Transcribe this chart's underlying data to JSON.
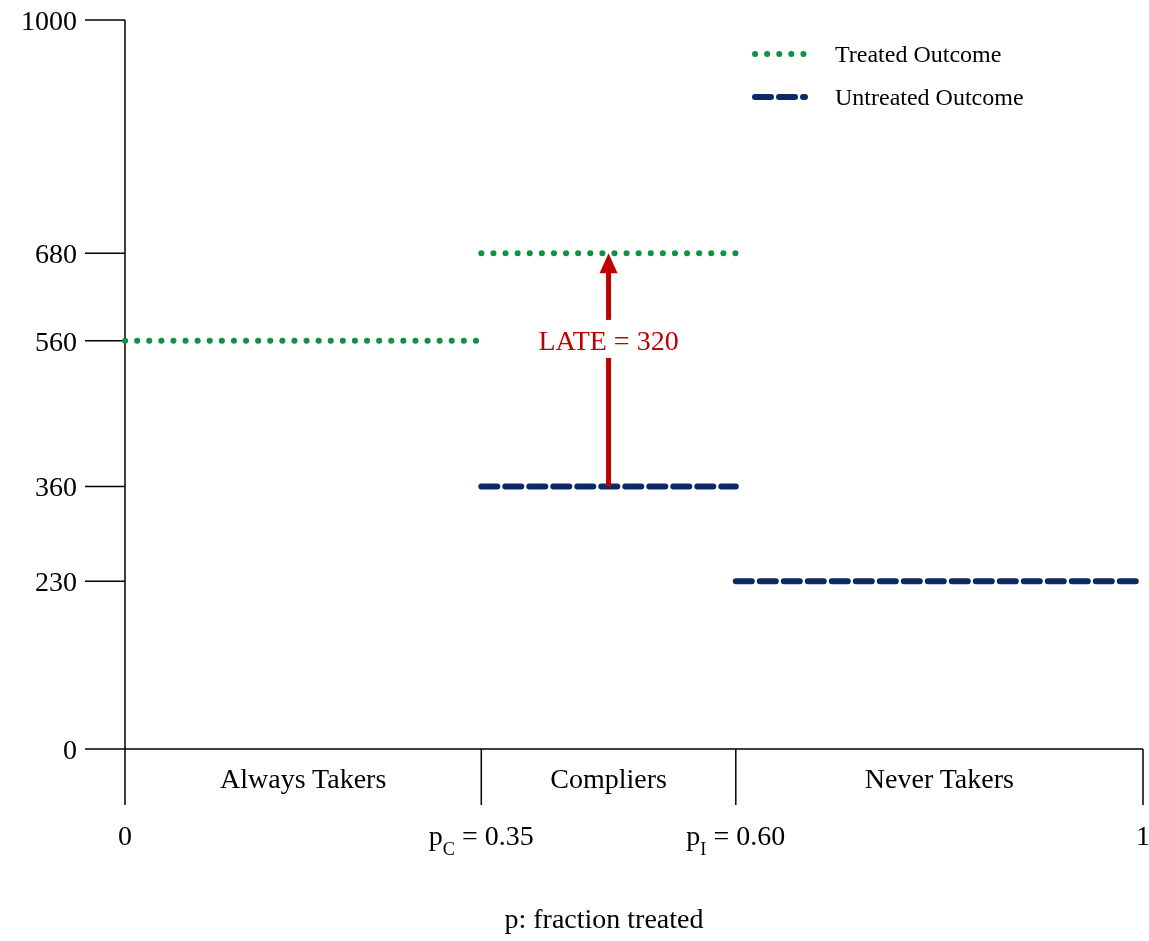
{
  "chart_data": {
    "type": "line",
    "xlabel": "p: fraction treated",
    "xlim": [
      0,
      1
    ],
    "ylim": [
      0,
      1000
    ],
    "xticks": [
      0,
      {
        "value": 0.35,
        "label": "p$_{C}$ = 0.35"
      },
      {
        "value": 0.6,
        "label": "p$_{I}$ = 0.60"
      },
      1
    ],
    "yticks": [
      0,
      230,
      360,
      560,
      680,
      1000
    ],
    "series": [
      {
        "name": "Treated Outcome",
        "color": "#119146",
        "line_style": "dotted",
        "x": [
          0,
          0.35
        ],
        "values": [
          560,
          560
        ]
      },
      {
        "color": "#119146",
        "line_style": "dotted",
        "x": [
          0.35,
          0.6
        ],
        "values": [
          680,
          680
        ]
      },
      {
        "name": "Untreated Outcome",
        "color": "#0d2a64",
        "line_style": "dashed",
        "x": [
          0.35,
          0.6
        ],
        "values": [
          360,
          360
        ]
      },
      {
        "color": "#0d2a64",
        "line_style": "dashed",
        "x": [
          0.6,
          1
        ],
        "values": [
          230,
          230
        ]
      }
    ],
    "annotations": [
      "Always Takers",
      "Compliers",
      "Never Takers",
      "LATE = 320"
    ],
    "legend": "top right",
    "grid": false
  }
}
